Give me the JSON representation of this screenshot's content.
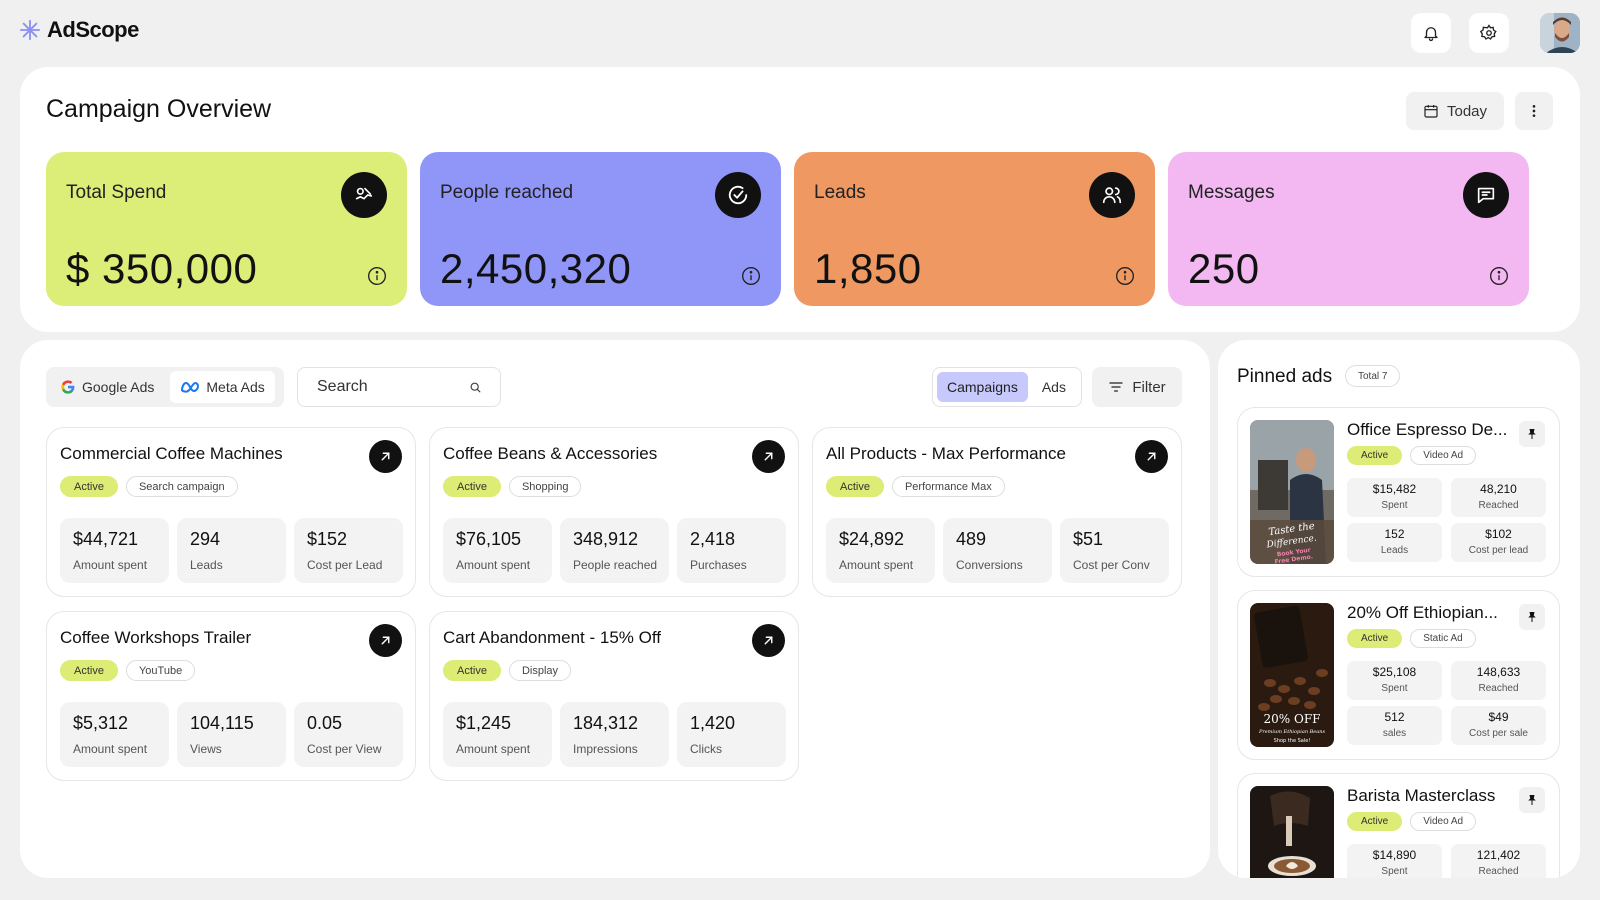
{
  "app": {
    "name": "AdScope"
  },
  "overview": {
    "title": "Campaign Overview",
    "date_button": "Today",
    "kpis": [
      {
        "label": "Total Spend",
        "value": "$ 350,000",
        "color": "#dcee77",
        "icon": "spend-icon"
      },
      {
        "label": "People reached",
        "value": "2,450,320",
        "color": "#9096f7",
        "icon": "check-circle-icon"
      },
      {
        "label": "Leads",
        "value": "1,850",
        "color": "#ef9862",
        "icon": "users-icon"
      },
      {
        "label": "Messages",
        "value": "250",
        "color": "#f3b8f2",
        "icon": "message-icon"
      }
    ]
  },
  "toolbar": {
    "platforms": [
      "Google Ads",
      "Meta Ads"
    ],
    "search_placeholder": "Search",
    "views": [
      "Campaigns",
      "Ads"
    ],
    "filter_label": "Filter"
  },
  "campaigns": [
    {
      "title": "Commercial Coffee Machines",
      "status": "Active",
      "type": "Search campaign",
      "metrics": [
        {
          "value": "$44,721",
          "label": "Amount spent"
        },
        {
          "value": "294",
          "label": "Leads"
        },
        {
          "value": "$152",
          "label": "Cost per Lead"
        }
      ]
    },
    {
      "title": "Coffee Beans & Accessories",
      "status": "Active",
      "type": "Shopping",
      "metrics": [
        {
          "value": "$76,105",
          "label": "Amount spent"
        },
        {
          "value": "348,912",
          "label": "People reached"
        },
        {
          "value": "2,418",
          "label": "Purchases"
        }
      ]
    },
    {
      "title": "All Products - Max Performance",
      "status": "Active",
      "type": "Performance Max",
      "metrics": [
        {
          "value": "$24,892",
          "label": "Amount spent"
        },
        {
          "value": "489",
          "label": "Conversions"
        },
        {
          "value": "$51",
          "label": "Cost per Conv"
        }
      ]
    },
    {
      "title": "Coffee Workshops Trailer",
      "status": "Active",
      "type": "YouTube",
      "metrics": [
        {
          "value": "$5,312",
          "label": "Amount spent"
        },
        {
          "value": "104,115",
          "label": "Views"
        },
        {
          "value": "0.05",
          "label": "Cost per View"
        }
      ]
    },
    {
      "title": "Cart Abandonment - 15% Off",
      "status": "Active",
      "type": "Display",
      "metrics": [
        {
          "value": "$1,245",
          "label": "Amount spent"
        },
        {
          "value": "184,312",
          "label": "Impressions"
        },
        {
          "value": "1,420",
          "label": "Clicks"
        }
      ]
    }
  ],
  "pinned": {
    "title": "Pinned ads",
    "total": "Total 7",
    "ads": [
      {
        "title": "Office Espresso De...",
        "status": "Active",
        "type": "Video Ad",
        "thumb_text": "Taste the Difference. Book Your Free Demo.",
        "stats": [
          {
            "value": "$15,482",
            "label": "Spent"
          },
          {
            "value": "48,210",
            "label": "Reached"
          },
          {
            "value": "152",
            "label": "Leads"
          },
          {
            "value": "$102",
            "label": "Cost per lead"
          }
        ]
      },
      {
        "title": "20% Off Ethiopian...",
        "status": "Active",
        "type": "Static Ad",
        "thumb_text": "20% OFF Premium Ethiopian Beans Shop the Sale!",
        "stats": [
          {
            "value": "$25,108",
            "label": "Spent"
          },
          {
            "value": "148,633",
            "label": "Reached"
          },
          {
            "value": "512",
            "label": "sales"
          },
          {
            "value": "$49",
            "label": "Cost per sale"
          }
        ]
      },
      {
        "title": "Barista Masterclass",
        "status": "Active",
        "type": "Video Ad",
        "stats": [
          {
            "value": "$14,890",
            "label": "Spent"
          },
          {
            "value": "121,402",
            "label": "Reached"
          }
        ]
      }
    ]
  }
}
